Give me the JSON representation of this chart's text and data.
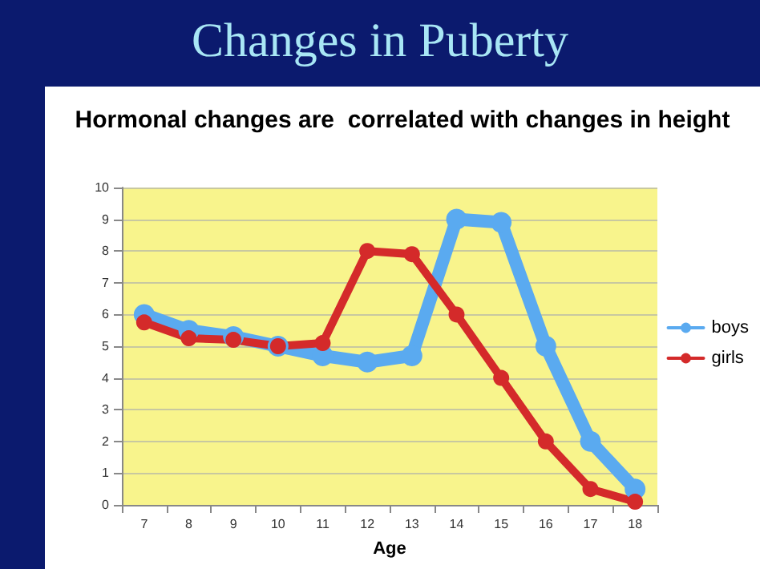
{
  "chart_data": {
    "type": "line",
    "title": "Changes in Puberty",
    "subtitle": "Hormonal changes are  correlated with changes in height",
    "xlabel": "Age",
    "categories": [
      "7",
      "8",
      "9",
      "10",
      "11",
      "12",
      "13",
      "14",
      "15",
      "16",
      "17",
      "18"
    ],
    "series": [
      {
        "name": "boys",
        "color": "#5aaaf0",
        "values": [
          6.0,
          5.5,
          5.3,
          5.0,
          4.7,
          4.5,
          4.7,
          9.0,
          8.9,
          5.0,
          2.0,
          0.5
        ]
      },
      {
        "name": "girls",
        "color": "#d42a2a",
        "values": [
          5.75,
          5.25,
          5.2,
          5.0,
          5.1,
          8.0,
          7.9,
          6.0,
          4.0,
          2.0,
          0.5,
          0.1
        ]
      }
    ],
    "ylim": [
      0,
      10
    ],
    "yticks": [
      0,
      1,
      2,
      3,
      4,
      5,
      6,
      7,
      8,
      9,
      10
    ],
    "grid": "y",
    "legend": "right",
    "marker": "circle",
    "line_style": "solid"
  }
}
